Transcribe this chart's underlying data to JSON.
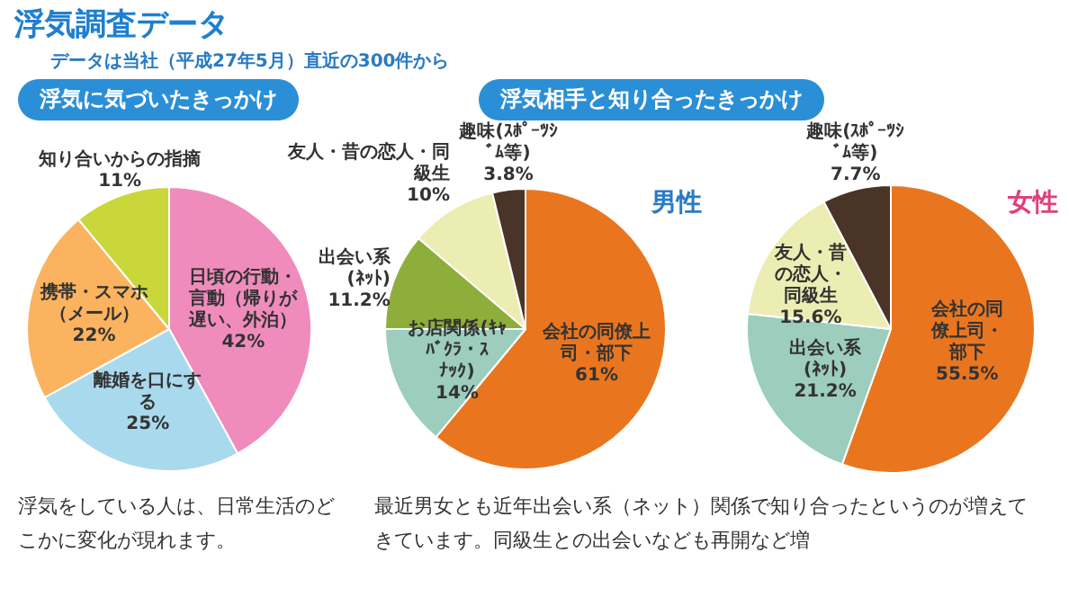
{
  "chart_data": [
    {
      "type": "pie",
      "title": "浮気調査データ",
      "subtitle": "データは当社（平成27年5月）直近の300件から",
      "annotations": [
        "浮気に気づいたきっかけ",
        "浮気をしている人は、日常生活のどこかに変化が現れます。"
      ],
      "value_labels": [
        "42%",
        "25%",
        "22%",
        "11%"
      ],
      "categories": [
        "日頃の行動・言動（帰りが遅い、外泊）",
        "離婚を口にする",
        "携帯・スマホ（メール）",
        "知り合いからの指摘"
      ],
      "values": [
        42,
        25,
        22,
        11
      ],
      "colors": [
        "#f08cbc",
        "#a9d9ec",
        "#fbb35f",
        "#c9d73a"
      ]
    },
    {
      "type": "pie",
      "title": "浮気相手と知り合ったきっかけ",
      "subtitle": "男性",
      "annotations": [
        "最近男女とも近年出会い系（ネット）関係で知り合ったというのが増えてきています。同級生との出会いなども再開など増"
      ],
      "value_labels": [
        "61%",
        "14%",
        "11.2%",
        "10%",
        "3.8%"
      ],
      "categories": [
        "会社の同僚上司・部下",
        "お店関係(ｷｬﾊﾞｸﾗ・ｽﾅｯｸ)",
        "出会い系(ﾈｯﾄ)",
        "友人・昔の恋人・同級生",
        "趣味(ｽﾎﾟｰﾂｼﾞﾑ等)"
      ],
      "values": [
        61,
        14,
        11.2,
        10,
        3.8
      ],
      "colors": [
        "#e9761f",
        "#9ccdbd",
        "#8eae3b",
        "#ecedb3",
        "#4a3327"
      ]
    },
    {
      "type": "pie",
      "subtitle": "女性",
      "value_labels": [
        "55.5%",
        "21.2%",
        "15.6%",
        "7.7%"
      ],
      "categories": [
        "会社の同僚上司・部下",
        "出会い系(ﾈｯﾄ)",
        "友人・昔の恋人・同級生",
        "趣味(ｽﾎﾟｰﾂｼﾞﾑ等)"
      ],
      "values": [
        55.5,
        21.2,
        15.6,
        7.7
      ],
      "colors": [
        "#e9761f",
        "#9ccdbd",
        "#ecedb3",
        "#4a3327"
      ]
    }
  ]
}
